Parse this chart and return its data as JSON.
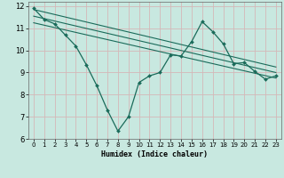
{
  "xlabel": "Humidex (Indice chaleur)",
  "bg_color": "#c8e8e0",
  "grid_color": "#d4b8b8",
  "line_color": "#1a6b5a",
  "xlim": [
    -0.5,
    23.5
  ],
  "ylim": [
    6,
    12.2
  ],
  "yticks": [
    6,
    7,
    8,
    9,
    10,
    11,
    12
  ],
  "xticks": [
    0,
    1,
    2,
    3,
    4,
    5,
    6,
    7,
    8,
    9,
    10,
    11,
    12,
    13,
    14,
    15,
    16,
    17,
    18,
    19,
    20,
    21,
    22,
    23
  ],
  "main_data_x": [
    0,
    1,
    2,
    3,
    4,
    5,
    6,
    7,
    8,
    9,
    10,
    11,
    12,
    13,
    14,
    15,
    16,
    17,
    18,
    19,
    20,
    21,
    22,
    23
  ],
  "main_data_y": [
    11.9,
    11.4,
    11.2,
    10.7,
    10.2,
    9.35,
    8.4,
    7.3,
    6.35,
    7.0,
    8.55,
    8.85,
    9.0,
    9.8,
    9.75,
    10.4,
    11.3,
    10.85,
    10.3,
    9.4,
    9.45,
    9.05,
    8.7,
    8.85
  ],
  "reg_line1_x": [
    0,
    23
  ],
  "reg_line1_y": [
    11.85,
    9.25
  ],
  "reg_line2_x": [
    0,
    23
  ],
  "reg_line2_y": [
    11.55,
    9.0
  ],
  "reg_line3_x": [
    0,
    23
  ],
  "reg_line3_y": [
    11.25,
    8.75
  ]
}
